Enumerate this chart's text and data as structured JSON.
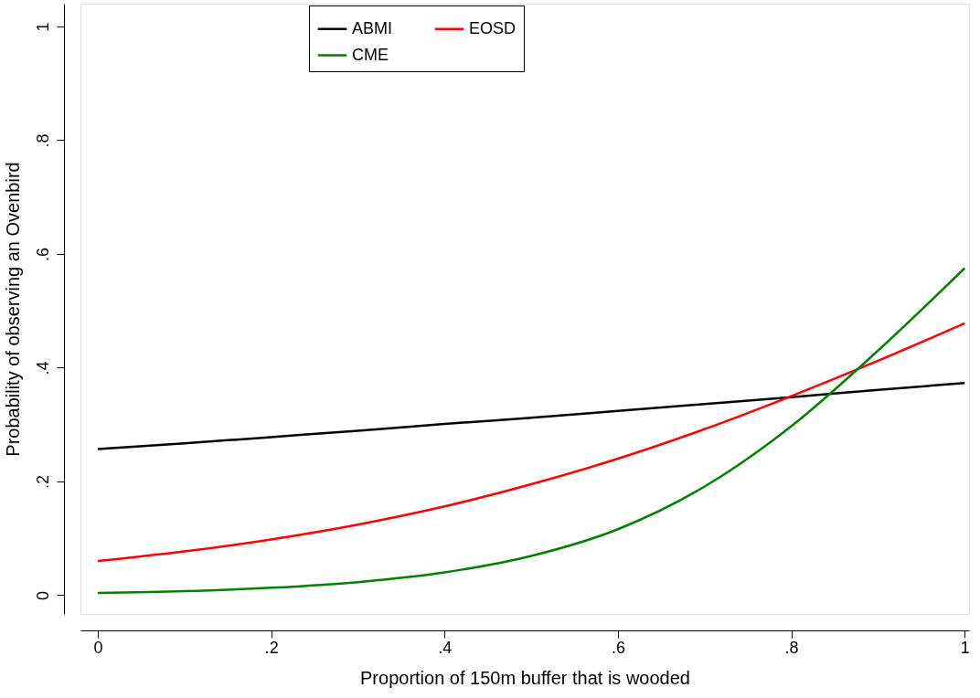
{
  "chart_data": {
    "type": "line",
    "xlabel": "Proportion of 150m buffer that is wooded",
    "ylabel": "Probability of observing an Ovenbird",
    "x": [
      0,
      0.1,
      0.2,
      0.3,
      0.4,
      0.5,
      0.6,
      0.7,
      0.8,
      0.9,
      1
    ],
    "series": [
      {
        "name": "ABMI",
        "color": "#000000",
        "values": [
          0.257,
          0.267,
          0.278,
          0.289,
          0.301,
          0.312,
          0.324,
          0.336,
          0.348,
          0.361,
          0.373
        ]
      },
      {
        "name": "EOSD",
        "color": "#ff0000",
        "values": [
          0.06,
          0.077,
          0.098,
          0.124,
          0.156,
          0.195,
          0.24,
          0.292,
          0.35,
          0.412,
          0.478
        ]
      },
      {
        "name": "CME",
        "color": "#008000",
        "values": [
          0.004,
          0.007,
          0.013,
          0.023,
          0.04,
          0.069,
          0.116,
          0.191,
          0.297,
          0.43,
          0.575
        ]
      }
    ],
    "xlim": [
      -0.02,
      1.005
    ],
    "ylim": [
      -0.033,
      1.04
    ],
    "xticks": [
      {
        "value": 0,
        "label": "0"
      },
      {
        "value": 0.2,
        "label": ".2"
      },
      {
        "value": 0.4,
        "label": ".4"
      },
      {
        "value": 0.6,
        "label": ".6"
      },
      {
        "value": 0.8,
        "label": ".8"
      },
      {
        "value": 1,
        "label": "1"
      }
    ],
    "yticks": [
      {
        "value": 0,
        "label": "0"
      },
      {
        "value": 0.2,
        "label": ".2"
      },
      {
        "value": 0.4,
        "label": ".4"
      },
      {
        "value": 0.6,
        "label": ".6"
      },
      {
        "value": 0.8,
        "label": ".8"
      },
      {
        "value": 1,
        "label": "1"
      }
    ],
    "grid": false,
    "legend": "top",
    "marker": "none",
    "line_style": "solid"
  }
}
